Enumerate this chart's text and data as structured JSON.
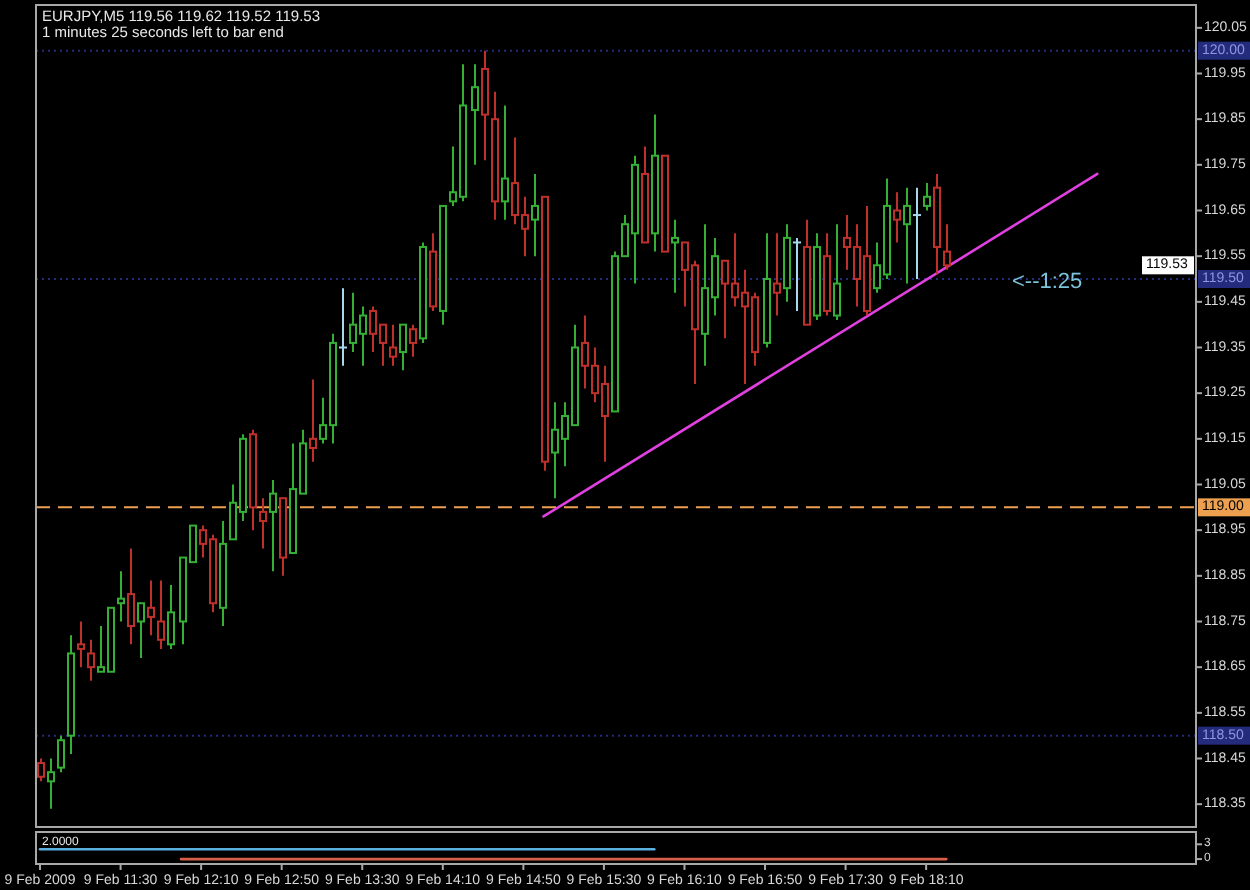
{
  "chart_data": [
    {
      "type": "candlestick",
      "title": "EURJPY,M5 119.56 119.62 119.52 119.53",
      "subtitle": "1 minutes 25 seconds left to bar end",
      "xlim": [
        "2009-02-09T10:48",
        "2009-02-09T20:24"
      ],
      "ylim": [
        118.3,
        120.1
      ],
      "yticks": [
        118.35,
        118.45,
        118.55,
        118.65,
        118.75,
        118.85,
        118.95,
        119.05,
        119.15,
        119.25,
        119.35,
        119.45,
        119.55,
        119.65,
        119.75,
        119.85,
        119.95,
        120.05
      ],
      "tick_labels": "y",
      "ref_lines": [
        {
          "axis": "y",
          "value": 120.0,
          "label": "120.00",
          "color": "#232b7c",
          "line_style": "dotted"
        },
        {
          "axis": "y",
          "value": 119.5,
          "label": "119.50",
          "color": "#232b7c",
          "line_style": "dotted"
        },
        {
          "axis": "y",
          "value": 119.0,
          "label": "119.00",
          "color": "#eda050",
          "line_style": "dashed"
        },
        {
          "axis": "y",
          "value": 118.5,
          "label": "118.50",
          "color": "#232b7c",
          "line_style": "dotted"
        }
      ],
      "annotations": [
        "<--1:25",
        {
          "text": "119.53",
          "y": 119.53
        }
      ],
      "series": [
        {
          "type": "candlestick",
          "x": [
            "2009-02-09T10:50",
            "2009-02-09T10:55",
            "2009-02-09T11:00",
            "2009-02-09T11:05",
            "2009-02-09T11:10",
            "2009-02-09T11:15",
            "2009-02-09T11:20",
            "2009-02-09T11:25",
            "2009-02-09T11:30",
            "2009-02-09T11:35",
            "2009-02-09T11:40",
            "2009-02-09T11:45",
            "2009-02-09T11:50",
            "2009-02-09T11:55",
            "2009-02-09T12:00",
            "2009-02-09T12:05",
            "2009-02-09T12:10",
            "2009-02-09T12:15",
            "2009-02-09T12:20",
            "2009-02-09T12:25",
            "2009-02-09T12:30",
            "2009-02-09T12:35",
            "2009-02-09T12:40",
            "2009-02-09T12:45",
            "2009-02-09T12:50",
            "2009-02-09T12:55",
            "2009-02-09T13:00",
            "2009-02-09T13:05",
            "2009-02-09T13:10",
            "2009-02-09T13:15",
            "2009-02-09T13:20",
            "2009-02-09T13:25",
            "2009-02-09T13:30",
            "2009-02-09T13:35",
            "2009-02-09T13:40",
            "2009-02-09T13:45",
            "2009-02-09T13:50",
            "2009-02-09T13:55",
            "2009-02-09T14:00",
            "2009-02-09T14:05",
            "2009-02-09T14:10",
            "2009-02-09T14:15",
            "2009-02-09T14:20",
            "2009-02-09T14:25",
            "2009-02-09T14:30",
            "2009-02-09T14:35",
            "2009-02-09T14:40",
            "2009-02-09T14:45",
            "2009-02-09T14:50",
            "2009-02-09T14:55",
            "2009-02-09T15:00",
            "2009-02-09T15:05",
            "2009-02-09T15:10",
            "2009-02-09T15:15",
            "2009-02-09T15:20",
            "2009-02-09T15:25",
            "2009-02-09T15:30",
            "2009-02-09T15:35",
            "2009-02-09T15:40",
            "2009-02-09T15:45",
            "2009-02-09T15:50",
            "2009-02-09T15:55",
            "2009-02-09T16:00",
            "2009-02-09T16:05",
            "2009-02-09T16:10",
            "2009-02-09T16:15",
            "2009-02-09T16:20",
            "2009-02-09T16:25",
            "2009-02-09T16:30",
            "2009-02-09T16:35",
            "2009-02-09T16:40",
            "2009-02-09T16:45",
            "2009-02-09T16:50",
            "2009-02-09T16:55",
            "2009-02-09T17:00",
            "2009-02-09T17:05",
            "2009-02-09T17:10",
            "2009-02-09T17:15",
            "2009-02-09T17:20",
            "2009-02-09T17:25",
            "2009-02-09T17:30",
            "2009-02-09T17:35",
            "2009-02-09T17:40",
            "2009-02-09T17:45",
            "2009-02-09T17:50",
            "2009-02-09T17:55",
            "2009-02-09T18:00",
            "2009-02-09T18:05",
            "2009-02-09T18:10",
            "2009-02-09T18:15",
            "2009-02-09T18:20"
          ],
          "ohlc": [
            [
              118.44,
              118.45,
              118.4,
              118.41
            ],
            [
              118.4,
              118.45,
              118.34,
              118.42
            ],
            [
              118.43,
              118.5,
              118.42,
              118.49
            ],
            [
              118.5,
              118.72,
              118.46,
              118.68
            ],
            [
              118.7,
              118.75,
              118.65,
              118.69
            ],
            [
              118.68,
              118.71,
              118.62,
              118.65
            ],
            [
              118.64,
              118.74,
              118.64,
              118.65
            ],
            [
              118.64,
              118.78,
              118.64,
              118.78
            ],
            [
              118.79,
              118.86,
              118.75,
              118.8
            ],
            [
              118.81,
              118.91,
              118.7,
              118.74
            ],
            [
              118.75,
              118.79,
              118.67,
              118.79
            ],
            [
              118.78,
              118.84,
              118.72,
              118.76
            ],
            [
              118.75,
              118.84,
              118.69,
              118.71
            ],
            [
              118.7,
              118.83,
              118.69,
              118.77
            ],
            [
              118.75,
              118.89,
              118.7,
              118.89
            ],
            [
              118.88,
              118.96,
              118.88,
              118.96
            ],
            [
              118.95,
              118.96,
              118.89,
              118.92
            ],
            [
              118.93,
              118.94,
              118.77,
              118.79
            ],
            [
              118.78,
              118.97,
              118.74,
              118.92
            ],
            [
              118.93,
              119.05,
              118.93,
              119.01
            ],
            [
              118.99,
              119.16,
              118.97,
              119.15
            ],
            [
              119.16,
              119.17,
              118.95,
              119.0
            ],
            [
              118.99,
              119.02,
              118.91,
              118.97
            ],
            [
              118.99,
              119.06,
              118.86,
              119.03
            ],
            [
              119.02,
              119.02,
              118.85,
              118.89
            ],
            [
              118.9,
              119.14,
              118.9,
              119.04
            ],
            [
              119.03,
              119.17,
              119.03,
              119.14
            ],
            [
              119.15,
              119.28,
              119.1,
              119.13
            ],
            [
              119.15,
              119.24,
              119.14,
              119.18
            ],
            [
              119.18,
              119.38,
              119.14,
              119.36
            ],
            [
              119.35,
              119.48,
              119.31,
              119.35
            ],
            [
              119.36,
              119.47,
              119.34,
              119.4
            ],
            [
              119.38,
              119.44,
              119.31,
              119.42
            ],
            [
              119.43,
              119.44,
              119.34,
              119.38
            ],
            [
              119.4,
              119.4,
              119.31,
              119.36
            ],
            [
              119.35,
              119.4,
              119.31,
              119.33
            ],
            [
              119.34,
              119.4,
              119.3,
              119.4
            ],
            [
              119.39,
              119.4,
              119.33,
              119.36
            ],
            [
              119.37,
              119.58,
              119.36,
              119.57
            ],
            [
              119.56,
              119.6,
              119.43,
              119.44
            ],
            [
              119.43,
              119.66,
              119.4,
              119.66
            ],
            [
              119.67,
              119.79,
              119.66,
              119.69
            ],
            [
              119.68,
              119.97,
              119.67,
              119.88
            ],
            [
              119.87,
              119.97,
              119.75,
              119.92
            ],
            [
              119.96,
              120.0,
              119.76,
              119.86
            ],
            [
              119.85,
              119.91,
              119.63,
              119.67
            ],
            [
              119.67,
              119.88,
              119.63,
              119.72
            ],
            [
              119.71,
              119.81,
              119.62,
              119.64
            ],
            [
              119.64,
              119.68,
              119.55,
              119.61
            ],
            [
              119.63,
              119.73,
              119.55,
              119.66
            ],
            [
              119.68,
              119.68,
              119.08,
              119.1
            ],
            [
              119.12,
              119.23,
              119.02,
              119.17
            ],
            [
              119.15,
              119.23,
              119.09,
              119.2
            ],
            [
              119.18,
              119.4,
              119.18,
              119.35
            ],
            [
              119.36,
              119.42,
              119.26,
              119.31
            ],
            [
              119.31,
              119.35,
              119.23,
              119.25
            ],
            [
              119.27,
              119.31,
              119.1,
              119.2
            ],
            [
              119.21,
              119.56,
              119.21,
              119.55
            ],
            [
              119.55,
              119.64,
              119.55,
              119.62
            ],
            [
              119.6,
              119.77,
              119.49,
              119.75
            ],
            [
              119.73,
              119.79,
              119.58,
              119.58
            ],
            [
              119.6,
              119.86,
              119.56,
              119.77
            ],
            [
              119.77,
              119.77,
              119.56,
              119.56
            ],
            [
              119.58,
              119.63,
              119.47,
              119.59
            ],
            [
              119.58,
              119.58,
              119.44,
              119.52
            ],
            [
              119.53,
              119.54,
              119.27,
              119.39
            ],
            [
              119.38,
              119.62,
              119.31,
              119.48
            ],
            [
              119.46,
              119.59,
              119.42,
              119.55
            ],
            [
              119.54,
              119.54,
              119.37,
              119.49
            ],
            [
              119.49,
              119.6,
              119.44,
              119.46
            ],
            [
              119.47,
              119.52,
              119.27,
              119.44
            ],
            [
              119.46,
              119.47,
              119.31,
              119.34
            ],
            [
              119.36,
              119.6,
              119.35,
              119.5
            ],
            [
              119.49,
              119.6,
              119.42,
              119.47
            ],
            [
              119.48,
              119.62,
              119.45,
              119.59
            ],
            [
              119.58,
              119.59,
              119.43,
              119.58
            ],
            [
              119.57,
              119.63,
              119.4,
              119.4
            ],
            [
              119.42,
              119.6,
              119.41,
              119.57
            ],
            [
              119.55,
              119.6,
              119.42,
              119.43
            ],
            [
              119.42,
              119.62,
              119.41,
              119.49
            ],
            [
              119.59,
              119.64,
              119.52,
              119.57
            ],
            [
              119.57,
              119.62,
              119.44,
              119.5
            ],
            [
              119.55,
              119.66,
              119.42,
              119.43
            ],
            [
              119.48,
              119.58,
              119.47,
              119.53
            ],
            [
              119.51,
              119.72,
              119.5,
              119.66
            ],
            [
              119.65,
              119.69,
              119.58,
              119.63
            ],
            [
              119.62,
              119.7,
              119.49,
              119.66
            ],
            [
              119.64,
              119.7,
              119.5,
              119.64
            ],
            [
              119.66,
              119.71,
              119.65,
              119.68
            ],
            [
              119.7,
              119.73,
              119.51,
              119.57
            ],
            [
              119.56,
              119.62,
              119.52,
              119.53
            ]
          ],
          "colors": [
            "#c0302a",
            "#34b034",
            "#34b034",
            "#34b034",
            "#c0302a",
            "#c0302a",
            "#34b034",
            "#34b034",
            "#34b034",
            "#c0302a",
            "#34b034",
            "#c0302a",
            "#c0302a",
            "#34b034",
            "#34b034",
            "#34b034",
            "#c0302a",
            "#c0302a",
            "#34b034",
            "#34b034",
            "#34b034",
            "#c0302a",
            "#c0302a",
            "#34b034",
            "#c0302a",
            "#34b034",
            "#34b034",
            "#c0302a",
            "#34b034",
            "#34b034",
            "#a8d8ec",
            "#34b034",
            "#34b034",
            "#c0302a",
            "#c0302a",
            "#c0302a",
            "#34b034",
            "#c0302a",
            "#34b034",
            "#c0302a",
            "#34b034",
            "#34b034",
            "#34b034",
            "#34b034",
            "#c0302a",
            "#c0302a",
            "#34b034",
            "#c0302a",
            "#c0302a",
            "#34b034",
            "#c0302a",
            "#34b034",
            "#34b034",
            "#34b034",
            "#c0302a",
            "#c0302a",
            "#c0302a",
            "#34b034",
            "#34b034",
            "#34b034",
            "#c0302a",
            "#34b034",
            "#c0302a",
            "#34b034",
            "#c0302a",
            "#c0302a",
            "#34b034",
            "#34b034",
            "#c0302a",
            "#c0302a",
            "#c0302a",
            "#c0302a",
            "#34b034",
            "#c0302a",
            "#34b034",
            "#a8d8ec",
            "#c0302a",
            "#34b034",
            "#c0302a",
            "#34b034",
            "#c0302a",
            "#c0302a",
            "#c0302a",
            "#34b034",
            "#34b034",
            "#c0302a",
            "#34b034",
            "#a8d8ec",
            "#34b034",
            "#c0302a",
            "#c0302a"
          ]
        },
        {
          "type": "line",
          "color": "#e040e0",
          "x": [
            "2009-02-09T15:00",
            "2009-02-09T19:35"
          ],
          "values": [
            118.98,
            119.73
          ]
        }
      ]
    },
    {
      "type": "line",
      "title": "2.0000",
      "xlim": [
        "2009-02-09T10:48",
        "2009-02-09T20:24"
      ],
      "xticks": [
        {
          "value": "2009-02-09T10:50",
          "label": "9 Feb 2009"
        },
        {
          "value": "2009-02-09T11:30",
          "label": "9 Feb 11:30"
        },
        {
          "value": "2009-02-09T12:10",
          "label": "9 Feb 12:10"
        },
        {
          "value": "2009-02-09T12:50",
          "label": "9 Feb 12:50"
        },
        {
          "value": "2009-02-09T13:30",
          "label": "9 Feb 13:30"
        },
        {
          "value": "2009-02-09T14:10",
          "label": "9 Feb 14:10"
        },
        {
          "value": "2009-02-09T14:50",
          "label": "9 Feb 14:50"
        },
        {
          "value": "2009-02-09T15:30",
          "label": "9 Feb 15:30"
        },
        {
          "value": "2009-02-09T16:10",
          "label": "9 Feb 16:10"
        },
        {
          "value": "2009-02-09T16:50",
          "label": "9 Feb 16:50"
        },
        {
          "value": "2009-02-09T17:30",
          "label": "9 Feb 17:30"
        },
        {
          "value": "2009-02-09T18:10",
          "label": "9 Feb 18:10"
        }
      ],
      "ylim": [
        -1,
        5.5
      ],
      "yticks": [
        3,
        0
      ],
      "series": [
        {
          "color": "#5ab0e0",
          "x": [
            "2009-02-09T10:50",
            "2009-02-09T15:55"
          ],
          "values": [
            2,
            2
          ]
        },
        {
          "color": "#d8604a",
          "x": [
            "2009-02-09T12:00",
            "2009-02-09T18:20"
          ],
          "values": [
            0,
            0
          ]
        }
      ]
    }
  ]
}
